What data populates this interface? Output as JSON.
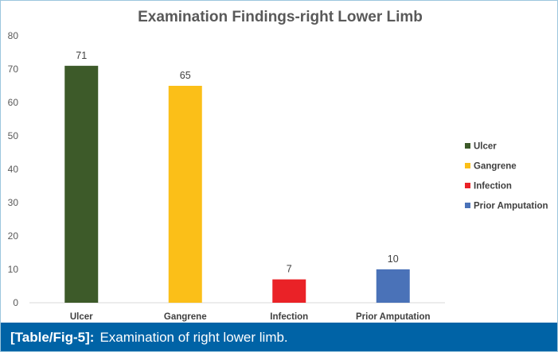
{
  "chart_data": {
    "type": "bar",
    "title": "Examination Findings-right Lower Limb",
    "categories": [
      "Ulcer",
      "Gangrene",
      "Infection",
      "Prior Amputation"
    ],
    "values": [
      71,
      65,
      7,
      10
    ],
    "colors": [
      "#3d5a29",
      "#fbbf18",
      "#ea2227",
      "#4a72b8"
    ],
    "ylim": [
      0,
      80
    ],
    "yticks": [
      0,
      10,
      20,
      30,
      40,
      50,
      60,
      70,
      80
    ],
    "xlabel": "",
    "ylabel": "",
    "grid": false,
    "legend_position": "right",
    "legend": [
      "Ulcer",
      "Gangrene",
      "Infection",
      "Prior Amputation"
    ]
  },
  "caption": {
    "ref": "[Table/Fig-5]:",
    "text": "Examination of right lower limb."
  }
}
